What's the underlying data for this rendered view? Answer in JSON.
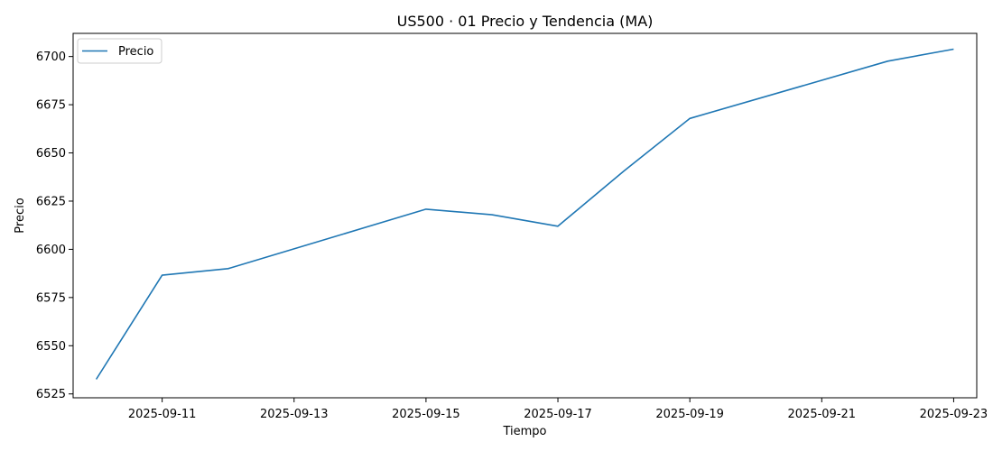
{
  "chart_data": {
    "type": "line",
    "title": "US500 · 01 Precio y Tendencia (MA)",
    "xlabel": "Tiempo",
    "ylabel": "Precio",
    "x_is_date": true,
    "xlim": [
      "2025-09-09",
      "2025-09-23"
    ],
    "ylim": [
      6523,
      6712
    ],
    "x_ticks": [
      "2025-09-11",
      "2025-09-13",
      "2025-09-15",
      "2025-09-17",
      "2025-09-19",
      "2025-09-21",
      "2025-09-23"
    ],
    "y_ticks": [
      6525,
      6550,
      6575,
      6600,
      6625,
      6650,
      6675,
      6700
    ],
    "grid": false,
    "legend": {
      "position": "top-left"
    },
    "colors": {
      "series": "#1f77b4"
    },
    "series": [
      {
        "name": "Precio",
        "x": [
          "2025-09-10",
          "2025-09-11",
          "2025-09-12",
          "2025-09-15",
          "2025-09-16",
          "2025-09-17",
          "2025-09-18",
          "2025-09-19",
          "2025-09-22",
          "2025-09-23"
        ],
        "values": [
          6532.6,
          6586.6,
          6590.0,
          6620.8,
          6617.9,
          6612.0,
          6640.6,
          6667.9,
          6697.6,
          6703.8
        ]
      }
    ]
  }
}
